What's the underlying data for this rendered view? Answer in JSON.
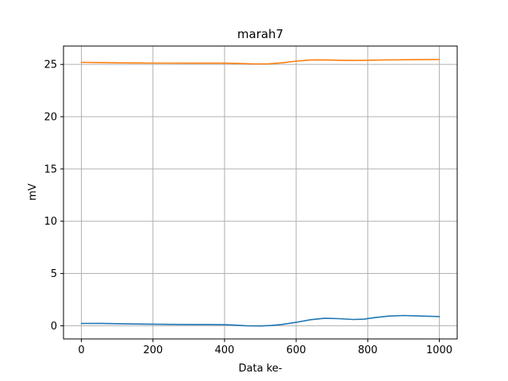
{
  "chart_data": {
    "type": "line",
    "title": "marah7",
    "xlabel": "Data ke-",
    "ylabel": "mV",
    "xlim": [
      -50,
      1050
    ],
    "ylim": [
      -1.26,
      26.76
    ],
    "xticks": [
      0,
      200,
      400,
      600,
      800,
      1000
    ],
    "yticks": [
      0,
      5,
      10,
      15,
      20,
      25
    ],
    "grid": true,
    "series": [
      {
        "color": "#1f77b4",
        "x": [
          0,
          50,
          100,
          150,
          200,
          250,
          300,
          350,
          400,
          430,
          460,
          500,
          530,
          560,
          600,
          640,
          680,
          720,
          760,
          790,
          820,
          860,
          900,
          950,
          1000
        ],
        "y": [
          0.22,
          0.23,
          0.2,
          0.17,
          0.15,
          0.13,
          0.12,
          0.12,
          0.1,
          0.06,
          0.0,
          -0.02,
          0.02,
          0.12,
          0.33,
          0.58,
          0.72,
          0.68,
          0.6,
          0.63,
          0.78,
          0.93,
          0.98,
          0.93,
          0.88
        ]
      },
      {
        "color": "#ff7f0e",
        "x": [
          0,
          50,
          100,
          150,
          200,
          250,
          300,
          350,
          400,
          440,
          480,
          520,
          560,
          600,
          640,
          680,
          720,
          760,
          800,
          850,
          900,
          950,
          1000
        ],
        "y": [
          25.2,
          25.18,
          25.15,
          25.14,
          25.13,
          25.13,
          25.12,
          25.12,
          25.13,
          25.1,
          25.05,
          25.05,
          25.15,
          25.32,
          25.42,
          25.44,
          25.4,
          25.38,
          25.4,
          25.43,
          25.45,
          25.46,
          25.47
        ]
      }
    ]
  }
}
